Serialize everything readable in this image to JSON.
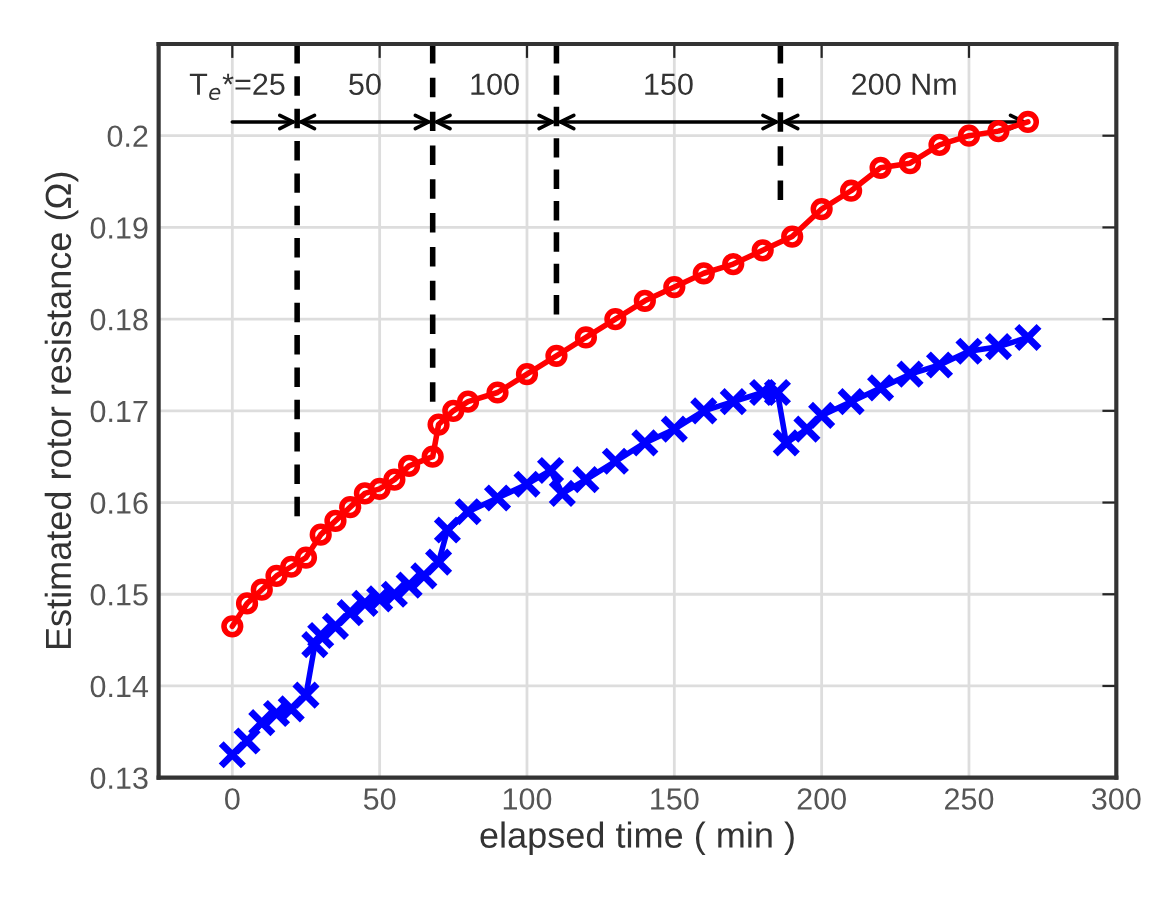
{
  "chart_data": {
    "type": "line",
    "xlabel": "elapsed time ( min )",
    "ylabel": "Estimated rotor resistance (Ω)",
    "xlim": [
      -25,
      300
    ],
    "xticks": [
      0,
      50,
      100,
      150,
      200,
      250,
      300
    ],
    "ylim": [
      0.13,
      0.21
    ],
    "yticks": [
      0.13,
      0.14,
      0.15,
      0.16,
      0.17,
      0.18,
      0.19,
      0.2
    ],
    "grid": true,
    "legend": false,
    "series": [
      {
        "color": "#ff0000",
        "marker": "circle",
        "line_style": "solid",
        "x": [
          0,
          5,
          10,
          15,
          20,
          25,
          30,
          35,
          40,
          45,
          50,
          55,
          60,
          68,
          70,
          75,
          80,
          90,
          100,
          110,
          120,
          130,
          140,
          150,
          160,
          170,
          180,
          190,
          200,
          210,
          220,
          230,
          240,
          250,
          260,
          270
        ],
        "values": [
          0.1465,
          0.149,
          0.1505,
          0.152,
          0.153,
          0.154,
          0.1565,
          0.158,
          0.1595,
          0.161,
          0.1615,
          0.1625,
          0.164,
          0.165,
          0.1685,
          0.17,
          0.171,
          0.172,
          0.174,
          0.176,
          0.178,
          0.18,
          0.182,
          0.1835,
          0.185,
          0.186,
          0.1875,
          0.189,
          0.192,
          0.194,
          0.1965,
          0.197,
          0.199,
          0.2,
          0.2005,
          0.2015
        ]
      },
      {
        "color": "#0000ff",
        "marker": "cross",
        "line_style": "solid",
        "x": [
          0,
          5,
          10,
          15,
          20,
          25,
          28,
          30,
          35,
          40,
          45,
          50,
          55,
          60,
          65,
          70,
          73,
          80,
          90,
          100,
          108,
          112,
          120,
          130,
          140,
          150,
          160,
          170,
          180,
          185,
          188,
          195,
          200,
          210,
          220,
          230,
          240,
          250,
          260,
          270
        ],
        "values": [
          0.1325,
          0.134,
          0.136,
          0.137,
          0.1375,
          0.139,
          0.1445,
          0.1455,
          0.1465,
          0.148,
          0.149,
          0.1495,
          0.15,
          0.151,
          0.152,
          0.1535,
          0.157,
          0.159,
          0.1605,
          0.162,
          0.1635,
          0.161,
          0.1625,
          0.1645,
          0.1665,
          0.168,
          0.17,
          0.171,
          0.172,
          0.172,
          0.1665,
          0.168,
          0.1695,
          0.171,
          0.1725,
          0.174,
          0.175,
          0.1765,
          0.177,
          0.178
        ]
      },
      {
        "color": "#000000",
        "marker": "none",
        "line_style": "dashed",
        "x": [
          22,
          22
        ],
        "values": [
          0.21,
          0.1585
        ]
      },
      {
        "color": "#000000",
        "marker": "none",
        "line_style": "dashed",
        "x": [
          68,
          68
        ],
        "values": [
          0.21,
          0.171
        ]
      },
      {
        "color": "#000000",
        "marker": "none",
        "line_style": "dashed",
        "x": [
          110,
          110
        ],
        "values": [
          0.21,
          0.1805
        ]
      },
      {
        "color": "#000000",
        "marker": "none",
        "line_style": "dashed",
        "x": [
          186,
          186
        ],
        "values": [
          0.21,
          0.193
        ]
      }
    ],
    "annotations": [
      {
        "text": "T$_{e}$*=25",
        "x": 22,
        "y": 0.2015
      },
      "50",
      "100",
      "150",
      "200 Nm"
    ]
  }
}
